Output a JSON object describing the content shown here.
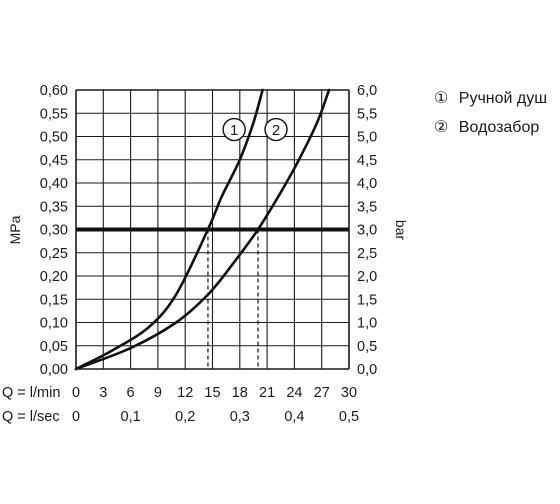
{
  "chart_data": {
    "type": "line",
    "y_left_label": "MPa",
    "y_right_label": "bar",
    "y_left_ticks": [
      "0,00",
      "0,05",
      "0,10",
      "0,15",
      "0,20",
      "0,25",
      "0,30",
      "0,35",
      "0,40",
      "0,45",
      "0,50",
      "0,55",
      "0,60"
    ],
    "y_right_ticks": [
      "0,0",
      "0,5",
      "1,0",
      "1,5",
      "2,0",
      "2,5",
      "3,0",
      "3,5",
      "4,0",
      "4,5",
      "5,0",
      "5,5",
      "6,0"
    ],
    "x_lmin_label": "Q = l/min",
    "x_lmin_ticks": [
      "0",
      "3",
      "6",
      "9",
      "12",
      "15",
      "18",
      "21",
      "24",
      "27",
      "30"
    ],
    "x_lsec_label": "Q = l/sec",
    "x_lsec_ticks": [
      "0",
      "0,1",
      "0,2",
      "0,3",
      "0,4",
      "0,5"
    ],
    "xlim": [
      0,
      30
    ],
    "ylim": [
      0,
      0.6
    ],
    "grid": true,
    "reference_line": {
      "y": 0.3,
      "x_intersections": [
        14.5,
        20.0
      ]
    },
    "series": [
      {
        "name": "Ручной душ",
        "marker": "①",
        "points": [
          [
            0,
            0
          ],
          [
            4,
            0.04
          ],
          [
            8,
            0.09
          ],
          [
            11,
            0.16
          ],
          [
            14.5,
            0.3
          ],
          [
            16,
            0.37
          ],
          [
            18,
            0.45
          ],
          [
            19.5,
            0.53
          ],
          [
            20.5,
            0.6
          ]
        ]
      },
      {
        "name": "Водозабор",
        "marker": "②",
        "points": [
          [
            0,
            0
          ],
          [
            6,
            0.045
          ],
          [
            11,
            0.1
          ],
          [
            14.5,
            0.16
          ],
          [
            17,
            0.22
          ],
          [
            20,
            0.3
          ],
          [
            22.5,
            0.38
          ],
          [
            24.5,
            0.45
          ],
          [
            26.5,
            0.53
          ],
          [
            27.8,
            0.6
          ]
        ]
      }
    ],
    "legend": {
      "position": "right",
      "items": [
        {
          "marker": "①",
          "label": "Ручной душ"
        },
        {
          "marker": "②",
          "label": "Водозабор"
        }
      ]
    }
  }
}
